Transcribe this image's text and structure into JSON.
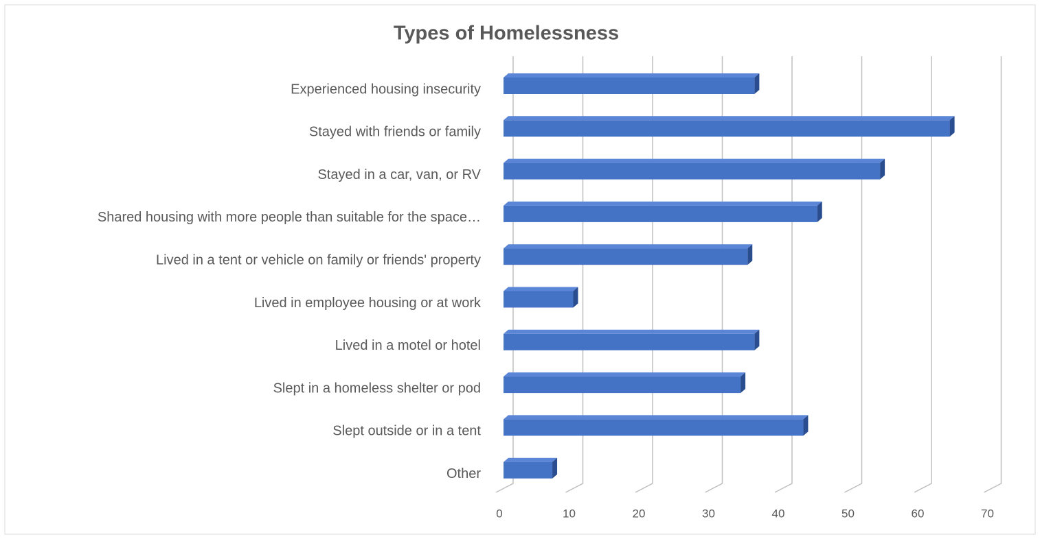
{
  "chart_data": {
    "type": "bar",
    "orientation": "horizontal",
    "3d": true,
    "title": "Types of Homelessness",
    "categories": [
      "Experienced housing insecurity",
      "Stayed with friends or family",
      "Stayed in a car, van, or RV",
      "Shared housing with more people than suitable for the space…",
      "Lived in a tent or vehicle on family or friends' property",
      "Lived in employee housing or at work",
      "Lived in a motel or hotel",
      "Slept in a homeless shelter or pod",
      "Slept outside or in a tent",
      "Other"
    ],
    "values": [
      36,
      64,
      54,
      45,
      35,
      10,
      36,
      34,
      43,
      7
    ],
    "color": "#4472c4",
    "xlim": [
      0,
      70
    ],
    "xticks": [
      0,
      10,
      20,
      30,
      40,
      50,
      60,
      70
    ],
    "grid": true
  }
}
